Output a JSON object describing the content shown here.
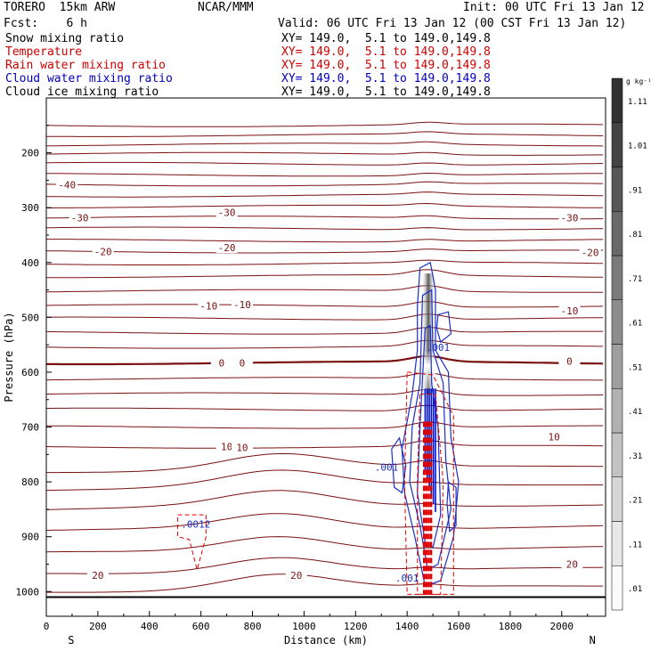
{
  "header": {
    "model": "TORERO  15km ARW",
    "org": "NCAR/MMM",
    "init": "Init: 00 UTC Fri 13 Jan 12",
    "fcst": "Fcst:    6 h",
    "valid": "Valid: 06 UTC Fri 13 Jan 12 (00 CST Fri 13 Jan 12)"
  },
  "fields": [
    {
      "name": "Snow mixing ratio",
      "xy": "XY= 149.0,  5.1 to 149.0,149.8",
      "color": "#000000"
    },
    {
      "name": "Temperature",
      "xy": "XY= 149.0,  5.1 to 149.0,149.8",
      "color": "#d00000"
    },
    {
      "name": "Rain water mixing ratio",
      "xy": "XY= 149.0,  5.1 to 149.0,149.8",
      "color": "#d00000"
    },
    {
      "name": "Cloud water mixing ratio",
      "xy": "XY= 149.0,  5.1 to 149.0,149.8",
      "color": "#0000c0"
    },
    {
      "name": "Cloud ice mixing ratio",
      "xy": "XY= 149.0,  5.1 to 149.0,149.8",
      "color": "#000000"
    }
  ],
  "chart_data": {
    "type": "cross-section contour",
    "title": "TORERO 15km ARW",
    "xlabel": "Distance (km)",
    "ylabel": "Pressure (hPa)",
    "xlim": [
      0,
      2170
    ],
    "ylim": [
      1045,
      100
    ],
    "x_ticks": [
      0,
      200,
      400,
      600,
      800,
      1000,
      1200,
      1400,
      1600,
      1800,
      2000
    ],
    "y_ticks": [
      200,
      300,
      400,
      500,
      600,
      700,
      800,
      900,
      1000
    ],
    "x_end_labels": {
      "left": "S",
      "right": "N"
    },
    "temperature_contours_degC": [
      -40,
      -30,
      -20,
      -10,
      0,
      10,
      20
    ],
    "temperature_labels": [
      {
        "text": "-40",
        "x": 80,
        "p": 258
      },
      {
        "text": "-30",
        "x": 130,
        "p": 318
      },
      {
        "text": "-30",
        "x": 700,
        "p": 309
      },
      {
        "text": "-30",
        "x": 2030,
        "p": 318
      },
      {
        "text": "-20",
        "x": 220,
        "p": 380
      },
      {
        "text": "-20",
        "x": 700,
        "p": 373
      },
      {
        "text": "-20",
        "x": 2110,
        "p": 382
      },
      {
        "text": "-10",
        "x": 630,
        "p": 479
      },
      {
        "text": "-10",
        "x": 760,
        "p": 477
      },
      {
        "text": "-10",
        "x": 2030,
        "p": 488
      },
      {
        "text": "0",
        "x": 680,
        "p": 583
      },
      {
        "text": "0",
        "x": 760,
        "p": 583
      },
      {
        "text": "0",
        "x": 2030,
        "p": 580
      },
      {
        "text": "10",
        "x": 700,
        "p": 736
      },
      {
        "text": "10",
        "x": 760,
        "p": 737
      },
      {
        "text": "10",
        "x": 1970,
        "p": 718
      },
      {
        "text": "20",
        "x": 200,
        "p": 970
      },
      {
        "text": "20",
        "x": 970,
        "p": 970
      },
      {
        "text": "20",
        "x": 2040,
        "p": 950
      }
    ],
    "cloud_labels": [
      {
        "text": ".001",
        "x": 1520,
        "p": 555
      },
      {
        "text": ".001",
        "x": 1320,
        "p": 773
      },
      {
        "text": ".001",
        "x": 1400,
        "p": 975
      },
      {
        "text": ".0012",
        "x": 580,
        "p": 877
      }
    ],
    "colorbar": {
      "unit": "g kg⁻¹",
      "ticks": [
        ".01",
        ".11",
        ".21",
        ".31",
        ".41",
        ".51",
        ".61",
        ".71",
        ".81",
        ".91",
        "1.01",
        "1.11"
      ]
    }
  }
}
